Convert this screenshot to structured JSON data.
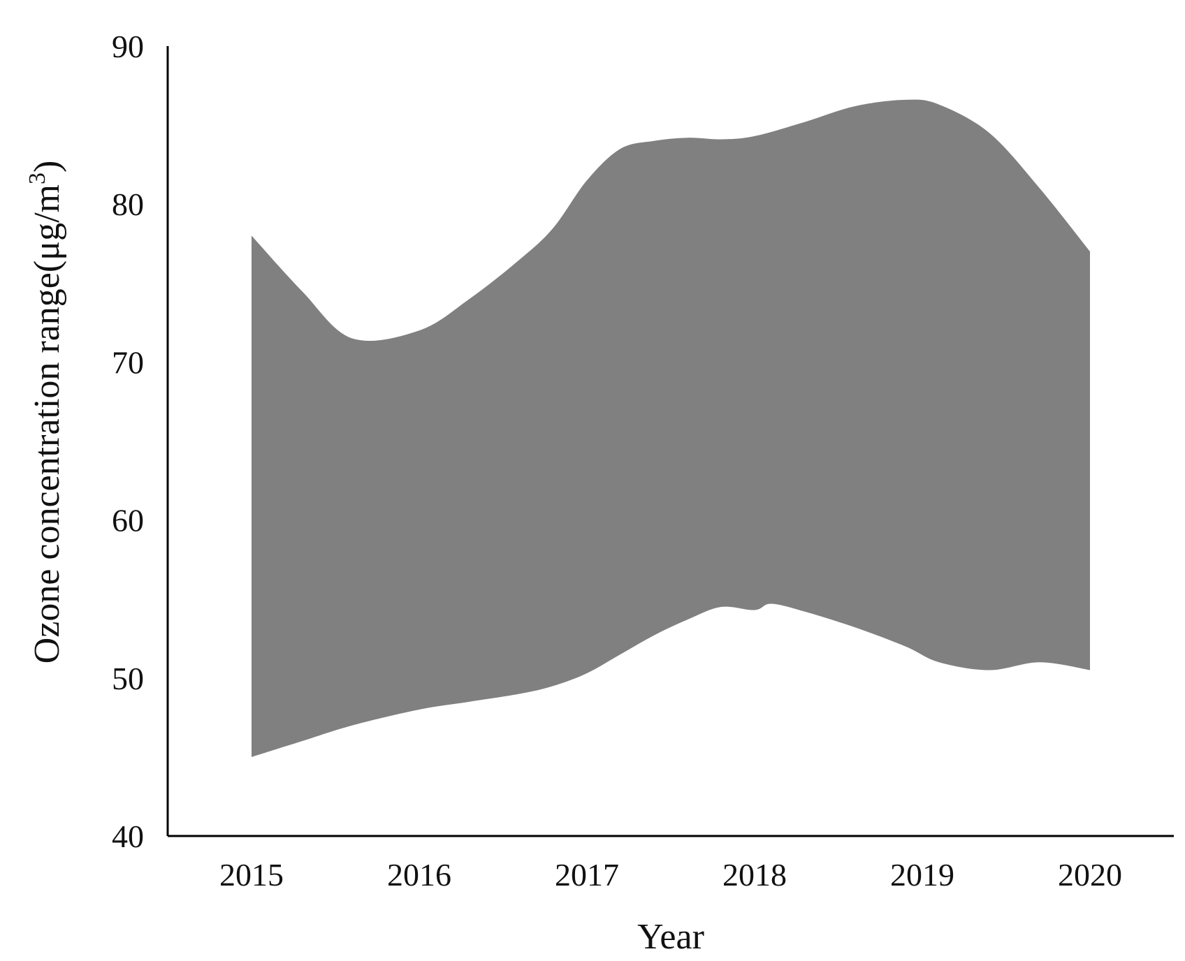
{
  "chart_data": {
    "type": "area",
    "title": "",
    "xlabel": "Year",
    "ylabel": "Ozone concentration range(μg/m³)",
    "ylabel_parts": {
      "main": "Ozone concentration range(μg/m",
      "sup": "3",
      "close": ")"
    },
    "x_ticks": [
      "2015",
      "2016",
      "2017",
      "2018",
      "2019",
      "2020"
    ],
    "y_ticks": [
      40,
      50,
      60,
      70,
      80,
      90
    ],
    "xlim": [
      2014.5,
      2020.5
    ],
    "ylim": [
      40,
      90
    ],
    "grid": false,
    "legend": "none",
    "band_color": "#808080",
    "upper": {
      "x": [
        2015.0,
        2015.3,
        2015.6,
        2016.0,
        2016.3,
        2016.6,
        2016.8,
        2017.0,
        2017.2,
        2017.4,
        2017.6,
        2017.8,
        2018.0,
        2018.3,
        2018.6,
        2018.9,
        2019.1,
        2019.4,
        2019.7,
        2020.0
      ],
      "y": [
        78.0,
        74.5,
        71.5,
        72.0,
        74.0,
        76.5,
        78.5,
        81.5,
        83.5,
        84.0,
        84.2,
        84.1,
        84.3,
        85.2,
        86.2,
        86.6,
        86.3,
        84.5,
        81.0,
        77.0
      ]
    },
    "lower": {
      "x": [
        2015.0,
        2015.3,
        2015.6,
        2016.0,
        2016.3,
        2016.6,
        2016.8,
        2017.0,
        2017.2,
        2017.4,
        2017.6,
        2017.8,
        2018.0,
        2018.1,
        2018.3,
        2018.6,
        2018.9,
        2019.1,
        2019.4,
        2019.7,
        2020.0
      ],
      "y": [
        45.0,
        46.0,
        47.0,
        48.0,
        48.5,
        49.0,
        49.5,
        50.3,
        51.5,
        52.7,
        53.7,
        54.5,
        54.3,
        54.7,
        54.2,
        53.2,
        52.0,
        51.0,
        50.5,
        51.0,
        50.5
      ]
    }
  }
}
